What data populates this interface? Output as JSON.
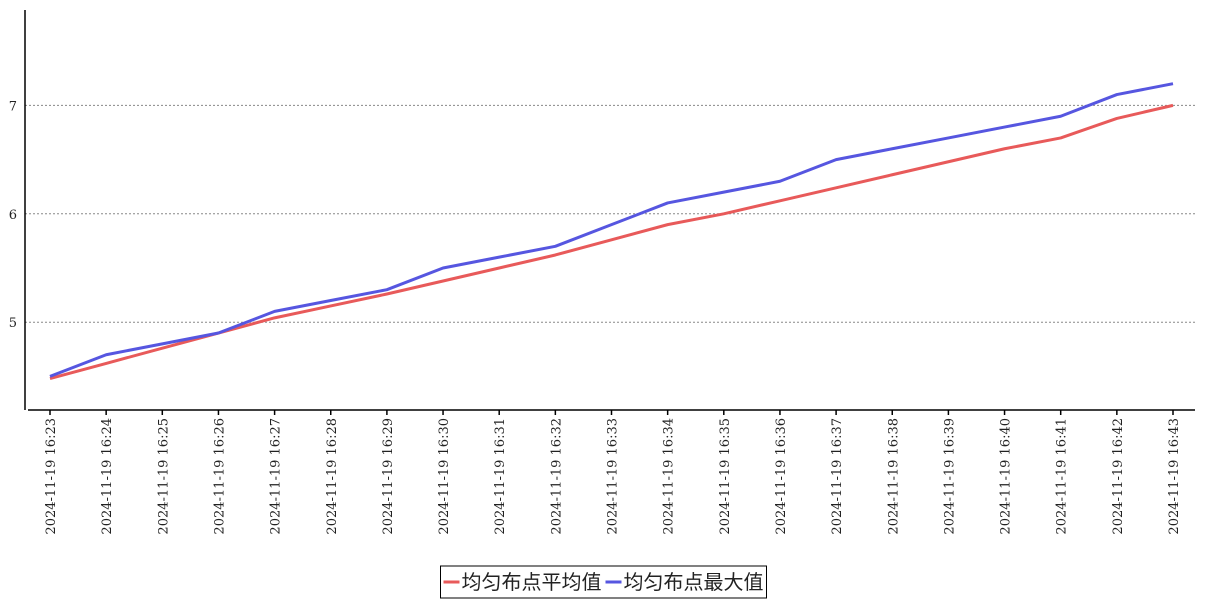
{
  "chart_data": {
    "type": "line",
    "categories": [
      "2024-11-19 16:23",
      "2024-11-19 16:24",
      "2024-11-19 16:25",
      "2024-11-19 16:26",
      "2024-11-19 16:27",
      "2024-11-19 16:28",
      "2024-11-19 16:29",
      "2024-11-19 16:30",
      "2024-11-19 16:31",
      "2024-11-19 16:32",
      "2024-11-19 16:33",
      "2024-11-19 16:34",
      "2024-11-19 16:35",
      "2024-11-19 16:36",
      "2024-11-19 16:37",
      "2024-11-19 16:38",
      "2024-11-19 16:39",
      "2024-11-19 16:40",
      "2024-11-19 16:41",
      "2024-11-19 16:42",
      "2024-11-19 16:43"
    ],
    "series": [
      {
        "name": "均匀布点平均值",
        "color": "#e85a5a",
        "values": [
          4.48,
          4.62,
          4.76,
          4.9,
          5.04,
          5.15,
          5.26,
          5.38,
          5.5,
          5.62,
          5.76,
          5.9,
          6.0,
          6.12,
          6.24,
          6.36,
          6.48,
          6.6,
          6.7,
          6.88,
          7.0
        ]
      },
      {
        "name": "均匀布点最大值",
        "color": "#5656e0",
        "values": [
          4.5,
          4.7,
          4.8,
          4.9,
          5.1,
          5.2,
          5.3,
          5.5,
          5.6,
          5.7,
          5.9,
          6.1,
          6.2,
          6.3,
          6.5,
          6.6,
          6.7,
          6.8,
          6.9,
          7.1,
          7.2
        ]
      }
    ],
    "ylim": [
      4.19,
      7.88
    ],
    "yticks": [
      5,
      6,
      7
    ],
    "grid": true,
    "legend": "bottom"
  }
}
